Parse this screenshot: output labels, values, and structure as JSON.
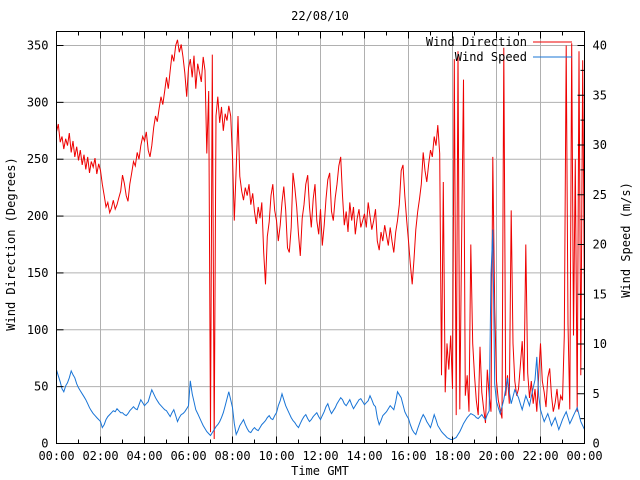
{
  "page": {
    "background": "#ffffff"
  },
  "colors": {
    "wind_direction": "#ee0000",
    "wind_speed": "#1874d6",
    "grid": "#b0b0b0",
    "border": "#000000",
    "text": "#000000"
  },
  "legend": {
    "items": [
      {
        "label": "Wind Direction",
        "color": "#ee0000"
      },
      {
        "label": "Wind Speed",
        "color": "#1874d6"
      }
    ]
  },
  "chart_data": {
    "type": "line",
    "title": "22/08/10",
    "xlabel": "Time GMT",
    "ylabel": "Wind Direction (Degrees)",
    "y2label": "Wind Speed (m/s)",
    "grid": true,
    "legend_position": "top-right-inside",
    "x_tick_labels": [
      "00:00",
      "02:00",
      "04:00",
      "06:00",
      "08:00",
      "10:00",
      "12:00",
      "14:00",
      "16:00",
      "18:00",
      "20:00",
      "22:00",
      "00:00"
    ],
    "x_tick_hours": [
      0,
      2,
      4,
      6,
      8,
      10,
      12,
      14,
      16,
      18,
      20,
      22,
      24
    ],
    "y_ticks": [
      0,
      50,
      100,
      150,
      200,
      250,
      300,
      350
    ],
    "y2_ticks": [
      0,
      5,
      10,
      15,
      20,
      25,
      30,
      35,
      40
    ],
    "ylim": [
      0,
      350
    ],
    "y2lim": [
      0,
      40
    ],
    "xlim_minutes": [
      0,
      1440
    ],
    "start_time": "00:00",
    "sample_interval_minutes": 5,
    "series": [
      {
        "name": "Wind Direction",
        "axis": "left",
        "unit": "degrees",
        "color": "#ee0000",
        "values": [
          274,
          281,
          265,
          270,
          259,
          268,
          262,
          273,
          256,
          266,
          252,
          261,
          249,
          258,
          245,
          254,
          241,
          252,
          238,
          248,
          243,
          251,
          237,
          246,
          240,
          228,
          218,
          208,
          212,
          203,
          207,
          214,
          206,
          210,
          216,
          222,
          236,
          229,
          218,
          213,
          228,
          238,
          248,
          244,
          256,
          250,
          262,
          270,
          266,
          274,
          258,
          252,
          262,
          278,
          288,
          283,
          295,
          305,
          298,
          310,
          322,
          312,
          328,
          342,
          336,
          350,
          355,
          344,
          351,
          340,
          326,
          305,
          330,
          338,
          322,
          341,
          312,
          334,
          326,
          318,
          340,
          328,
          255,
          310,
          10,
          342,
          4,
          288,
          305,
          282,
          296,
          275,
          290,
          284,
          297,
          288,
          252,
          196,
          242,
          288,
          235,
          222,
          214,
          225,
          218,
          228,
          210,
          220,
          204,
          193,
          208,
          198,
          212,
          168,
          140,
          182,
          195,
          218,
          228,
          205,
          196,
          178,
          192,
          212,
          226,
          205,
          172,
          168,
          190,
          238,
          225,
          208,
          184,
          165,
          198,
          210,
          228,
          236,
          208,
          190,
          215,
          228,
          196,
          184,
          206,
          174,
          192,
          215,
          232,
          238,
          204,
          196,
          216,
          228,
          244,
          252,
          218,
          192,
          204,
          186,
          212,
          196,
          208,
          184,
          198,
          206,
          190,
          196,
          202,
          190,
          212,
          200,
          188,
          196,
          206,
          178,
          170,
          186,
          178,
          192,
          183,
          174,
          190,
          178,
          168,
          186,
          196,
          210,
          240,
          245,
          218,
          196,
          178,
          158,
          140,
          162,
          188,
          204,
          215,
          228,
          256,
          240,
          230,
          246,
          258,
          252,
          270,
          262,
          280,
          255,
          60,
          230,
          45,
          88,
          65,
          95,
          48,
          338,
          25,
          345,
          30,
          185,
          320,
          42,
          60,
          28,
          175,
          88,
          60,
          38,
          25,
          85,
          45,
          30,
          18,
          65,
          42,
          28,
          252,
          120,
          55,
          38,
          30,
          22,
          348,
          42,
          60,
          35,
          205,
          88,
          55,
          42,
          48,
          68,
          90,
          55,
          175,
          62,
          40,
          55,
          35,
          48,
          28,
          60,
          88,
          55,
          45,
          32,
          58,
          66,
          42,
          28,
          36,
          48,
          30,
          42,
          38,
          95,
          350,
          105,
          30,
          352,
          95,
          250,
          28,
          345,
          60,
          337,
          120
        ]
      },
      {
        "name": "Wind Speed",
        "axis": "right",
        "unit": "m/s",
        "color": "#1874d6",
        "values": [
          7.4,
          6.8,
          6.2,
          5.5,
          5.2,
          5.8,
          6.1,
          6.6,
          7.3,
          6.9,
          6.6,
          6.0,
          5.6,
          5.3,
          5.0,
          4.7,
          4.4,
          4.0,
          3.6,
          3.3,
          3.0,
          2.8,
          2.6,
          2.4,
          2.2,
          1.6,
          1.9,
          2.4,
          2.7,
          2.9,
          3.1,
          3.3,
          3.2,
          3.5,
          3.3,
          3.1,
          3.1,
          2.9,
          2.8,
          3.0,
          3.3,
          3.5,
          3.7,
          3.5,
          3.4,
          3.9,
          4.4,
          4.1,
          3.8,
          4.0,
          4.2,
          4.8,
          5.4,
          5.0,
          4.6,
          4.3,
          4.0,
          3.8,
          3.6,
          3.4,
          3.3,
          3.0,
          2.7,
          3.1,
          3.4,
          2.8,
          2.2,
          2.6,
          2.9,
          3.0,
          3.2,
          3.5,
          3.8,
          6.3,
          5.0,
          4.2,
          3.4,
          3.0,
          2.6,
          2.2,
          1.8,
          1.5,
          1.2,
          1.0,
          0.8,
          1.1,
          1.4,
          1.7,
          1.9,
          2.2,
          2.6,
          3.1,
          3.8,
          4.5,
          5.2,
          4.4,
          3.6,
          2.0,
          0.9,
          1.3,
          1.8,
          2.1,
          2.4,
          1.9,
          1.5,
          1.2,
          1.1,
          1.4,
          1.6,
          1.4,
          1.3,
          1.6,
          1.9,
          2.1,
          2.3,
          2.6,
          2.8,
          2.5,
          2.4,
          2.8,
          3.1,
          3.8,
          4.3,
          5.0,
          4.4,
          3.8,
          3.4,
          3.0,
          2.6,
          2.3,
          2.1,
          1.8,
          1.6,
          2.0,
          2.4,
          2.7,
          2.9,
          2.5,
          2.2,
          2.4,
          2.7,
          2.9,
          3.1,
          2.7,
          2.4,
          2.8,
          3.2,
          3.7,
          4.0,
          3.4,
          3.0,
          3.3,
          3.6,
          4.0,
          4.3,
          4.6,
          4.4,
          4.0,
          3.8,
          4.1,
          4.4,
          3.9,
          3.5,
          3.8,
          4.1,
          4.4,
          4.5,
          4.2,
          3.9,
          4.1,
          4.3,
          4.8,
          4.4,
          3.9,
          3.7,
          2.6,
          1.9,
          2.3,
          2.8,
          3.0,
          3.2,
          3.5,
          3.8,
          3.6,
          3.4,
          4.2,
          5.2,
          4.9,
          4.6,
          3.9,
          3.2,
          2.8,
          2.5,
          1.9,
          1.4,
          1.1,
          0.9,
          1.5,
          2.0,
          2.5,
          2.9,
          2.6,
          2.2,
          1.9,
          1.6,
          2.2,
          2.9,
          2.4,
          1.8,
          1.5,
          1.2,
          1.0,
          0.8,
          0.6,
          0.5,
          0.4,
          0.4,
          0.5,
          0.6,
          0.9,
          1.2,
          1.6,
          2.0,
          2.3,
          2.6,
          2.8,
          3.0,
          2.9,
          2.8,
          2.6,
          2.5,
          2.7,
          2.9,
          2.6,
          2.4,
          2.9,
          3.3,
          17.0,
          21.5,
          6.0,
          4.2,
          3.6,
          3.0,
          3.7,
          4.4,
          5.5,
          6.6,
          5.2,
          4.0,
          4.7,
          5.4,
          5.0,
          4.6,
          4.0,
          3.4,
          4.1,
          4.8,
          4.3,
          3.8,
          4.7,
          5.6,
          6.4,
          8.7,
          4.8,
          3.4,
          2.8,
          2.2,
          2.6,
          3.0,
          2.4,
          1.8,
          2.2,
          2.6,
          2.0,
          1.4,
          1.9,
          2.4,
          2.8,
          3.2,
          2.6,
          2.0,
          2.4,
          2.8,
          3.2,
          3.6,
          2.9,
          2.2,
          1.8,
          1.4
        ]
      }
    ]
  }
}
